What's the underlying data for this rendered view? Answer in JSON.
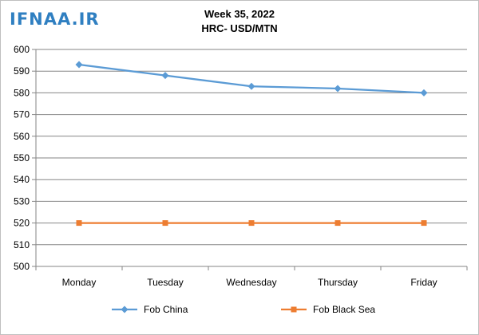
{
  "header": {
    "logo_text": "IFNAA.IR"
  },
  "chart_data": {
    "type": "line",
    "title": "Week 35, 2022",
    "subtitle": "HRC- USD/MTN",
    "categories": [
      "Monday",
      "Tuesday",
      "Wednesday",
      "Thursday",
      "Friday"
    ],
    "series": [
      {
        "name": "Fob China",
        "values": [
          593,
          588,
          583,
          582,
          580
        ],
        "color": "#5b9bd5",
        "marker": "diamond"
      },
      {
        "name": "Fob Black Sea",
        "values": [
          520,
          520,
          520,
          520,
          520
        ],
        "color": "#ed7d31",
        "marker": "square"
      }
    ],
    "ylim": [
      500,
      600
    ],
    "yticks": [
      500,
      510,
      520,
      530,
      540,
      550,
      560,
      570,
      580,
      590,
      600
    ],
    "grid": true,
    "legend": "bottom"
  }
}
